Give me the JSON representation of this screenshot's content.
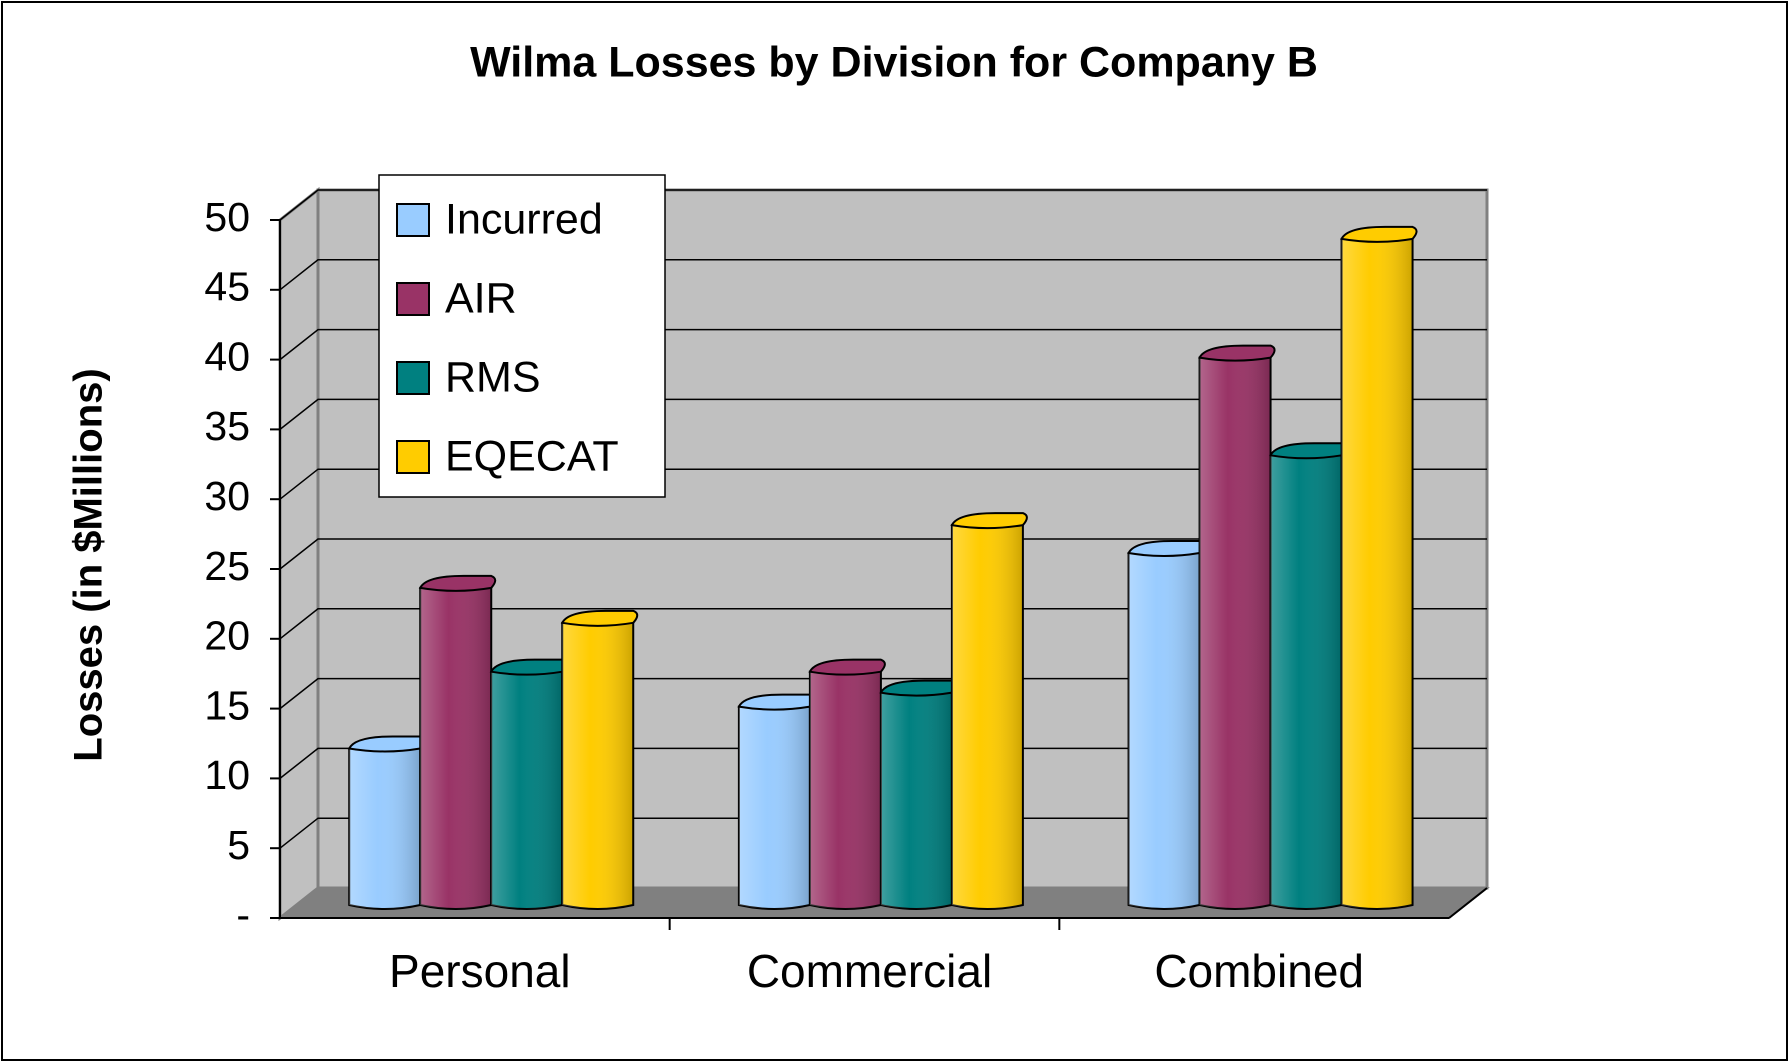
{
  "chart_data": {
    "type": "bar",
    "title": "Wilma Losses by Division for Company B",
    "y_label": "Losses (in $Millions)",
    "categories": [
      "Personal",
      "Commercial",
      "Combined"
    ],
    "series": [
      {
        "name": "Incurred",
        "color": "#99ccff",
        "values": [
          11.5,
          14.5,
          25.5
        ]
      },
      {
        "name": "AIR",
        "color": "#993366",
        "values": [
          23,
          17,
          39.5
        ]
      },
      {
        "name": "RMS",
        "color": "#008080",
        "values": [
          17,
          15.5,
          32.5
        ]
      },
      {
        "name": "EQECAT",
        "color": "#ffcc00",
        "values": [
          20.5,
          27.5,
          48
        ]
      }
    ],
    "ylim": [
      0,
      50
    ],
    "yticks": [
      {
        "value": 0,
        "label": "-"
      },
      5,
      10,
      15,
      20,
      25,
      30,
      35,
      40,
      45,
      50
    ],
    "grid": true,
    "legend": "upper left"
  }
}
